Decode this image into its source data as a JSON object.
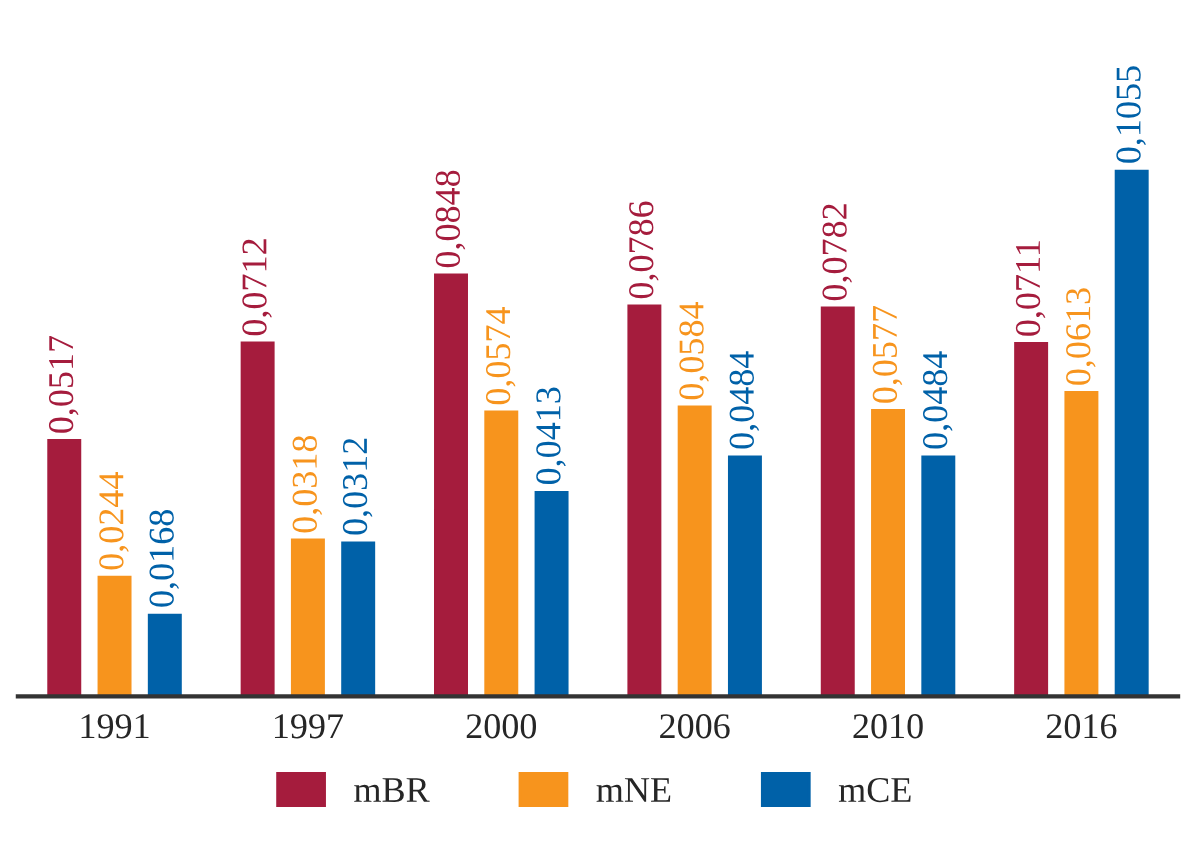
{
  "chart_data": {
    "type": "bar",
    "categories": [
      "1991",
      "1997",
      "2000",
      "2006",
      "2010",
      "2016"
    ],
    "series": [
      {
        "name": "mBR",
        "color": "#a51c3d",
        "values": [
          0.0517,
          0.0712,
          0.0848,
          0.0786,
          0.0782,
          0.0711
        ],
        "value_labels": [
          "0,0517",
          "0,0712",
          "0,0848",
          "0,0786",
          "0,0782",
          "0,0711"
        ]
      },
      {
        "name": "mNE",
        "color": "#f7941d",
        "values": [
          0.0244,
          0.0318,
          0.0574,
          0.0584,
          0.0577,
          0.0613
        ],
        "value_labels": [
          "0,0244",
          "0,0318",
          "0,0574",
          "0,0584",
          "0,0577",
          "0,0613"
        ]
      },
      {
        "name": "mCE",
        "color": "#0061a8",
        "values": [
          0.0168,
          0.0312,
          0.0413,
          0.0484,
          0.0484,
          0.1055
        ],
        "value_labels": [
          "0,0168",
          "0,0312",
          "0,0413",
          "0,0484",
          "0,0484",
          "0,1055"
        ]
      }
    ],
    "legend": "bottom",
    "grid": false
  }
}
